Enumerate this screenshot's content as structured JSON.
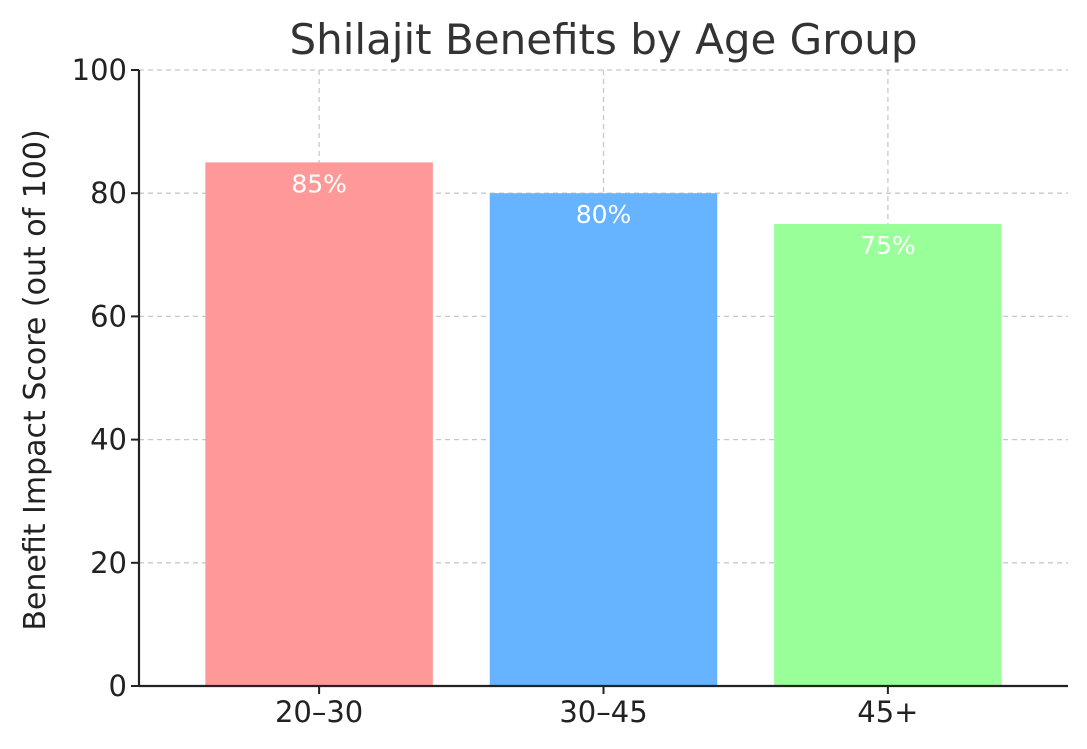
{
  "chart_data": {
    "type": "bar",
    "title": "Shilajit Benefits by Age Group",
    "xlabel": "",
    "ylabel": "Benefit Impact Score (out of 100)",
    "categories": [
      "20–30",
      "30–45",
      "45+"
    ],
    "values": [
      85,
      80,
      75
    ],
    "data_labels": [
      "85%",
      "80%",
      "75%"
    ],
    "colors": [
      "#ff9999",
      "#66b3ff",
      "#99ff99"
    ],
    "ylim": [
      0,
      100
    ],
    "yticks": [
      0,
      20,
      40,
      60,
      80,
      100
    ],
    "grid": true
  }
}
